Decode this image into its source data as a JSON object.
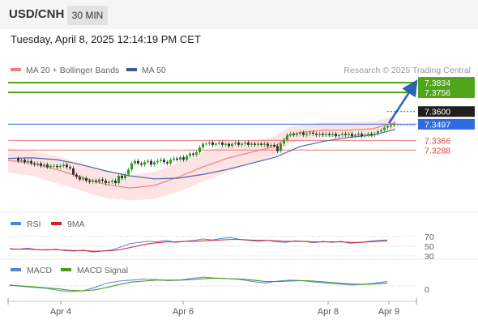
{
  "header": {
    "symbol": "USD/CNH",
    "interval": "30 MIN",
    "datetime": "Tuesday, April 8, 2025 12:14:19 PM CET"
  },
  "colors": {
    "up": "#2d9c2d",
    "down": "#333333",
    "ma20": "#f08080",
    "band_fill": "#fde3e3",
    "ma50": "#4a68a8",
    "target_line": "#4fa61a",
    "current_line": "#5b8be0",
    "support_line": "#e87a7a",
    "arrow": "#2a64b5",
    "rsi": "#5b7fdc",
    "rsi_ma": "#d62020",
    "macd": "#6a8fe0",
    "macd_signal": "#4a9a1a"
  },
  "legends": {
    "main": [
      {
        "label": "MA 20 + Bollinger Bands",
        "color": "#f08080"
      },
      {
        "label": "MA 50",
        "color": "#3a5a9a"
      }
    ],
    "rsi": [
      {
        "label": "RSI",
        "color": "#5b7fdc"
      },
      {
        "label": "9MA",
        "color": "#d62020"
      }
    ],
    "macd": [
      {
        "label": "MACD",
        "color": "#5b7fdc"
      },
      {
        "label": "MACD Signal",
        "color": "#4a9a1a"
      }
    ]
  },
  "watermark": "Research © 2025 Trading Central",
  "chart_data": [
    {
      "type": "candlestick",
      "pair": "USD/CNH",
      "x_tick_labels": [
        "Apr 4",
        "Apr 6",
        "Apr 8",
        "Apr 9"
      ],
      "ylim": [
        7.285,
        7.39
      ],
      "series": [
        {
          "name": "MA 20 + Bollinger Bands",
          "points": [
            [
              0,
              7.3205
            ],
            [
              30,
              7.318
            ],
            [
              60,
              7.313
            ],
            [
              90,
              7.307
            ],
            [
              120,
              7.301
            ],
            [
              150,
              7.298
            ],
            [
              180,
              7.3
            ],
            [
              210,
              7.307
            ],
            [
              240,
              7.315
            ],
            [
              270,
              7.322
            ],
            [
              300,
              7.327
            ],
            [
              330,
              7.332
            ],
            [
              345,
              7.34
            ],
            [
              360,
              7.343
            ],
            [
              390,
              7.345
            ],
            [
              420,
              7.345
            ],
            [
              450,
              7.346
            ],
            [
              478,
              7.351
            ]
          ]
        },
        {
          "name": "MA 50",
          "points": [
            [
              0,
              7.322
            ],
            [
              30,
              7.3225
            ],
            [
              60,
              7.321
            ],
            [
              90,
              7.317
            ],
            [
              120,
              7.312
            ],
            [
              150,
              7.308
            ],
            [
              180,
              7.3055
            ],
            [
              210,
              7.306
            ],
            [
              240,
              7.309
            ],
            [
              270,
              7.313
            ],
            [
              300,
              7.318
            ],
            [
              330,
              7.323
            ],
            [
              360,
              7.3315
            ],
            [
              390,
              7.336
            ],
            [
              420,
              7.339
            ],
            [
              450,
              7.341
            ],
            [
              478,
              7.3455
            ]
          ]
        }
      ],
      "candles": [
        [
          12,
          7.322,
          7.32
        ],
        [
          16,
          7.32,
          7.321
        ],
        [
          20,
          7.321,
          7.319
        ],
        [
          24,
          7.319,
          7.32
        ],
        [
          28,
          7.32,
          7.318
        ],
        [
          32,
          7.318,
          7.317
        ],
        [
          36,
          7.317,
          7.318
        ],
        [
          40,
          7.318,
          7.316
        ],
        [
          44,
          7.316,
          7.317
        ],
        [
          48,
          7.317,
          7.315
        ],
        [
          52,
          7.315,
          7.316
        ],
        [
          56,
          7.316,
          7.316
        ],
        [
          60,
          7.316,
          7.315
        ],
        [
          64,
          7.315,
          7.316
        ],
        [
          68,
          7.316,
          7.317
        ],
        [
          72,
          7.317,
          7.315
        ],
        [
          76,
          7.315,
          7.314
        ],
        [
          80,
          7.314,
          7.309
        ],
        [
          84,
          7.309,
          7.307
        ],
        [
          88,
          7.307,
          7.305
        ],
        [
          92,
          7.305,
          7.306
        ],
        [
          96,
          7.306,
          7.304
        ],
        [
          100,
          7.304,
          7.303
        ],
        [
          104,
          7.303,
          7.304
        ],
        [
          108,
          7.304,
          7.303
        ],
        [
          112,
          7.303,
          7.305
        ],
        [
          116,
          7.305,
          7.304
        ],
        [
          120,
          7.304,
          7.302
        ],
        [
          124,
          7.302,
          7.303
        ],
        [
          128,
          7.303,
          7.304
        ],
        [
          132,
          7.304,
          7.302
        ],
        [
          136,
          7.302,
          7.308
        ],
        [
          140,
          7.308,
          7.306
        ],
        [
          144,
          7.306,
          7.309
        ],
        [
          148,
          7.309,
          7.313
        ],
        [
          152,
          7.313,
          7.318
        ],
        [
          156,
          7.318,
          7.32
        ],
        [
          160,
          7.32,
          7.318
        ],
        [
          164,
          7.318,
          7.317
        ],
        [
          168,
          7.317,
          7.319
        ],
        [
          172,
          7.319,
          7.32
        ],
        [
          176,
          7.32,
          7.317
        ],
        [
          180,
          7.317,
          7.319
        ],
        [
          184,
          7.319,
          7.32
        ],
        [
          188,
          7.32,
          7.321
        ],
        [
          192,
          7.321,
          7.319
        ],
        [
          196,
          7.319,
          7.318
        ],
        [
          200,
          7.318,
          7.321
        ],
        [
          204,
          7.321,
          7.322
        ],
        [
          208,
          7.322,
          7.321
        ],
        [
          212,
          7.321,
          7.323
        ],
        [
          216,
          7.323,
          7.321
        ],
        [
          220,
          7.321,
          7.324
        ],
        [
          224,
          7.324,
          7.326
        ],
        [
          228,
          7.326,
          7.325
        ],
        [
          232,
          7.325,
          7.327
        ],
        [
          236,
          7.327,
          7.331
        ],
        [
          240,
          7.331,
          7.334
        ],
        [
          244,
          7.334,
          7.334
        ],
        [
          248,
          7.334,
          7.335
        ],
        [
          252,
          7.335,
          7.333
        ],
        [
          256,
          7.333,
          7.334
        ],
        [
          260,
          7.334,
          7.335
        ],
        [
          264,
          7.335,
          7.333
        ],
        [
          268,
          7.333,
          7.334
        ],
        [
          272,
          7.334,
          7.332
        ],
        [
          276,
          7.332,
          7.334
        ],
        [
          280,
          7.334,
          7.335
        ],
        [
          284,
          7.335,
          7.333
        ],
        [
          288,
          7.333,
          7.334
        ],
        [
          292,
          7.334,
          7.335
        ],
        [
          296,
          7.335,
          7.333
        ],
        [
          300,
          7.333,
          7.334
        ],
        [
          304,
          7.334,
          7.333
        ],
        [
          308,
          7.333,
          7.334
        ],
        [
          312,
          7.334,
          7.333
        ],
        [
          316,
          7.333,
          7.334
        ],
        [
          320,
          7.334,
          7.332
        ],
        [
          324,
          7.332,
          7.333
        ],
        [
          328,
          7.333,
          7.332
        ],
        [
          332,
          7.332,
          7.328
        ],
        [
          336,
          7.328,
          7.334
        ],
        [
          340,
          7.334,
          7.337
        ],
        [
          344,
          7.337,
          7.341
        ],
        [
          348,
          7.341,
          7.342
        ],
        [
          352,
          7.342,
          7.341
        ],
        [
          356,
          7.341,
          7.342
        ],
        [
          360,
          7.342,
          7.343
        ],
        [
          364,
          7.343,
          7.341
        ],
        [
          368,
          7.341,
          7.342
        ],
        [
          372,
          7.342,
          7.343
        ],
        [
          376,
          7.343,
          7.342
        ],
        [
          380,
          7.342,
          7.341
        ],
        [
          384,
          7.341,
          7.342
        ],
        [
          388,
          7.342,
          7.341
        ],
        [
          392,
          7.341,
          7.342
        ],
        [
          396,
          7.342,
          7.341
        ],
        [
          400,
          7.341,
          7.342
        ],
        [
          404,
          7.342,
          7.34
        ],
        [
          408,
          7.34,
          7.341
        ],
        [
          412,
          7.341,
          7.342
        ],
        [
          416,
          7.342,
          7.341
        ],
        [
          420,
          7.341,
          7.342
        ],
        [
          424,
          7.342,
          7.34
        ],
        [
          428,
          7.34,
          7.341
        ],
        [
          432,
          7.341,
          7.342
        ],
        [
          436,
          7.342,
          7.34
        ],
        [
          440,
          7.34,
          7.341
        ],
        [
          444,
          7.341,
          7.342
        ],
        [
          448,
          7.342,
          7.341
        ],
        [
          452,
          7.341,
          7.342
        ],
        [
          456,
          7.342,
          7.344
        ],
        [
          460,
          7.344,
          7.345
        ],
        [
          464,
          7.345,
          7.347
        ],
        [
          468,
          7.347,
          7.348
        ],
        [
          472,
          7.348,
          7.349
        ],
        [
          476,
          7.349,
          7.35
        ]
      ],
      "levels": [
        {
          "label": "7.3834",
          "value": 7.3834,
          "kind": "target"
        },
        {
          "label": "7.3756",
          "value": 7.3756,
          "kind": "target"
        },
        {
          "label": "7.3600",
          "value": 7.36,
          "kind": "resistance"
        },
        {
          "label": "7.3497",
          "value": 7.3497,
          "kind": "current"
        },
        {
          "label": "7.3366",
          "value": 7.3366,
          "kind": "support"
        },
        {
          "label": "7.3288",
          "value": 7.3288,
          "kind": "support"
        }
      ]
    },
    {
      "type": "line",
      "name": "RSI",
      "ylim": [
        0,
        100
      ],
      "y_tick_labels": [
        "70",
        "50",
        "30"
      ],
      "series": [
        {
          "name": "RSI",
          "values": [
            45,
            44,
            46,
            43,
            42,
            44,
            41,
            40,
            42,
            38,
            40,
            42,
            48,
            55,
            58,
            60,
            59,
            62,
            58,
            60,
            62,
            65,
            63,
            66,
            68,
            64,
            62,
            60,
            62,
            59,
            58,
            61,
            60,
            57,
            60,
            58,
            60,
            56,
            58,
            60,
            62,
            63
          ]
        },
        {
          "name": "9MA",
          "values": [
            44,
            44,
            44,
            43,
            43,
            43,
            42,
            41,
            41,
            40,
            40,
            41,
            43,
            47,
            51,
            55,
            57,
            59,
            59,
            60,
            60,
            61,
            62,
            63,
            64,
            64,
            63,
            62,
            62,
            61,
            60,
            60,
            60,
            59,
            59,
            59,
            59,
            58,
            58,
            59,
            60,
            61
          ]
        }
      ]
    },
    {
      "type": "line",
      "name": "MACD",
      "y_tick_labels": [
        "0"
      ],
      "series": [
        {
          "name": "MACD",
          "values": [
            0.2,
            -0.1,
            -0.3,
            -0.5,
            -0.9,
            -1.2,
            -1.0,
            -0.3,
            0.6,
            1.0,
            1.2,
            1.4,
            1.3,
            1.1,
            1.2,
            1.6,
            1.8,
            1.6,
            1.5,
            1.3,
            0.9,
            0.6,
            1.0,
            1.2,
            1.1,
            0.8,
            0.6,
            0.4,
            0.2,
            0.3,
            0.6,
            0.9
          ]
        },
        {
          "name": "MACD Signal",
          "values": [
            0.1,
            0.0,
            -0.2,
            -0.4,
            -0.6,
            -0.9,
            -1.0,
            -0.8,
            -0.3,
            0.3,
            0.8,
            1.0,
            1.2,
            1.2,
            1.2,
            1.3,
            1.5,
            1.6,
            1.5,
            1.4,
            1.2,
            0.9,
            0.9,
            1.0,
            1.1,
            1.0,
            0.8,
            0.6,
            0.4,
            0.3,
            0.4,
            0.6
          ]
        }
      ]
    }
  ]
}
